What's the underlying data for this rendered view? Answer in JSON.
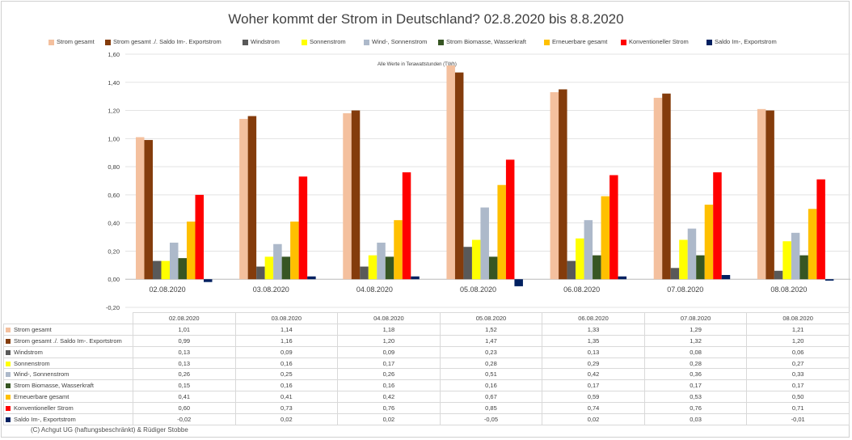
{
  "chart_data": {
    "type": "bar",
    "title": "Woher kommt der Strom in Deutschland? 02.8.2020 bis 8.8.2020",
    "annotation": "Alle Werte in Terawattstunden (TWh)",
    "categories": [
      "02.08.2020",
      "03.08.2020",
      "04.08.2020",
      "05.08.2020",
      "06.08.2020",
      "07.08.2020",
      "08.08.2020"
    ],
    "ylim": [
      -0.2,
      1.6
    ],
    "yticks": [
      "-0,20",
      "0,00",
      "0,20",
      "0,40",
      "0,60",
      "0,80",
      "1,00",
      "1,20",
      "1,40",
      "1,60"
    ],
    "grid": true,
    "legend_position": "top",
    "series": [
      {
        "name": "Strom gesamt",
        "color": "#f4c09e",
        "values": [
          1.01,
          1.14,
          1.18,
          1.52,
          1.33,
          1.29,
          1.21
        ],
        "labels": [
          "1,01",
          "1,14",
          "1,18",
          "1,52",
          "1,33",
          "1,29",
          "1,21"
        ]
      },
      {
        "name": "Strom gesamt ./. Saldo Im-. Exportstrom",
        "color": "#843c0c",
        "values": [
          0.99,
          1.16,
          1.2,
          1.47,
          1.35,
          1.32,
          1.2
        ],
        "labels": [
          "0,99",
          "1,16",
          "1,20",
          "1,47",
          "1,35",
          "1,32",
          "1,20"
        ]
      },
      {
        "name": "Windstrom",
        "color": "#595959",
        "values": [
          0.13,
          0.09,
          0.09,
          0.23,
          0.13,
          0.08,
          0.06
        ],
        "labels": [
          "0,13",
          "0,09",
          "0,09",
          "0,23",
          "0,13",
          "0,08",
          "0,06"
        ]
      },
      {
        "name": "Sonnenstrom",
        "color": "#ffff00",
        "values": [
          0.13,
          0.16,
          0.17,
          0.28,
          0.29,
          0.28,
          0.27
        ],
        "labels": [
          "0,13",
          "0,16",
          "0,17",
          "0,28",
          "0,29",
          "0,28",
          "0,27"
        ]
      },
      {
        "name": "Wind-, Sonnenstrom",
        "color": "#adb9ca",
        "values": [
          0.26,
          0.25,
          0.26,
          0.51,
          0.42,
          0.36,
          0.33
        ],
        "labels": [
          "0,26",
          "0,25",
          "0,26",
          "0,51",
          "0,42",
          "0,36",
          "0,33"
        ]
      },
      {
        "name": "Strom Biomasse, Wasserkraft",
        "color": "#375623",
        "values": [
          0.15,
          0.16,
          0.16,
          0.16,
          0.17,
          0.17,
          0.17
        ],
        "labels": [
          "0,15",
          "0,16",
          "0,16",
          "0,16",
          "0,17",
          "0,17",
          "0,17"
        ]
      },
      {
        "name": "Erneuerbare gesamt",
        "color": "#ffc000",
        "values": [
          0.41,
          0.41,
          0.42,
          0.67,
          0.59,
          0.53,
          0.5
        ],
        "labels": [
          "0,41",
          "0,41",
          "0,42",
          "0,67",
          "0,59",
          "0,53",
          "0,50"
        ]
      },
      {
        "name": "Konventioneller Strom",
        "color": "#ff0000",
        "values": [
          0.6,
          0.73,
          0.76,
          0.85,
          0.74,
          0.76,
          0.71
        ],
        "labels": [
          "0,60",
          "0,73",
          "0,76",
          "0,85",
          "0,74",
          "0,76",
          "0,71"
        ]
      },
      {
        "name": "Saldo Im-, Exportstrom",
        "color": "#002060",
        "values": [
          -0.02,
          0.02,
          0.02,
          -0.05,
          0.02,
          0.03,
          -0.01
        ],
        "labels": [
          "-0,02",
          "0,02",
          "0,02",
          "-0,05",
          "0,02",
          "0,03",
          "-0,01"
        ]
      }
    ]
  },
  "footer": {
    "copyright": "(C) Achgut UG (haftungsbeschränkt) & Rüdiger Stobbe"
  }
}
